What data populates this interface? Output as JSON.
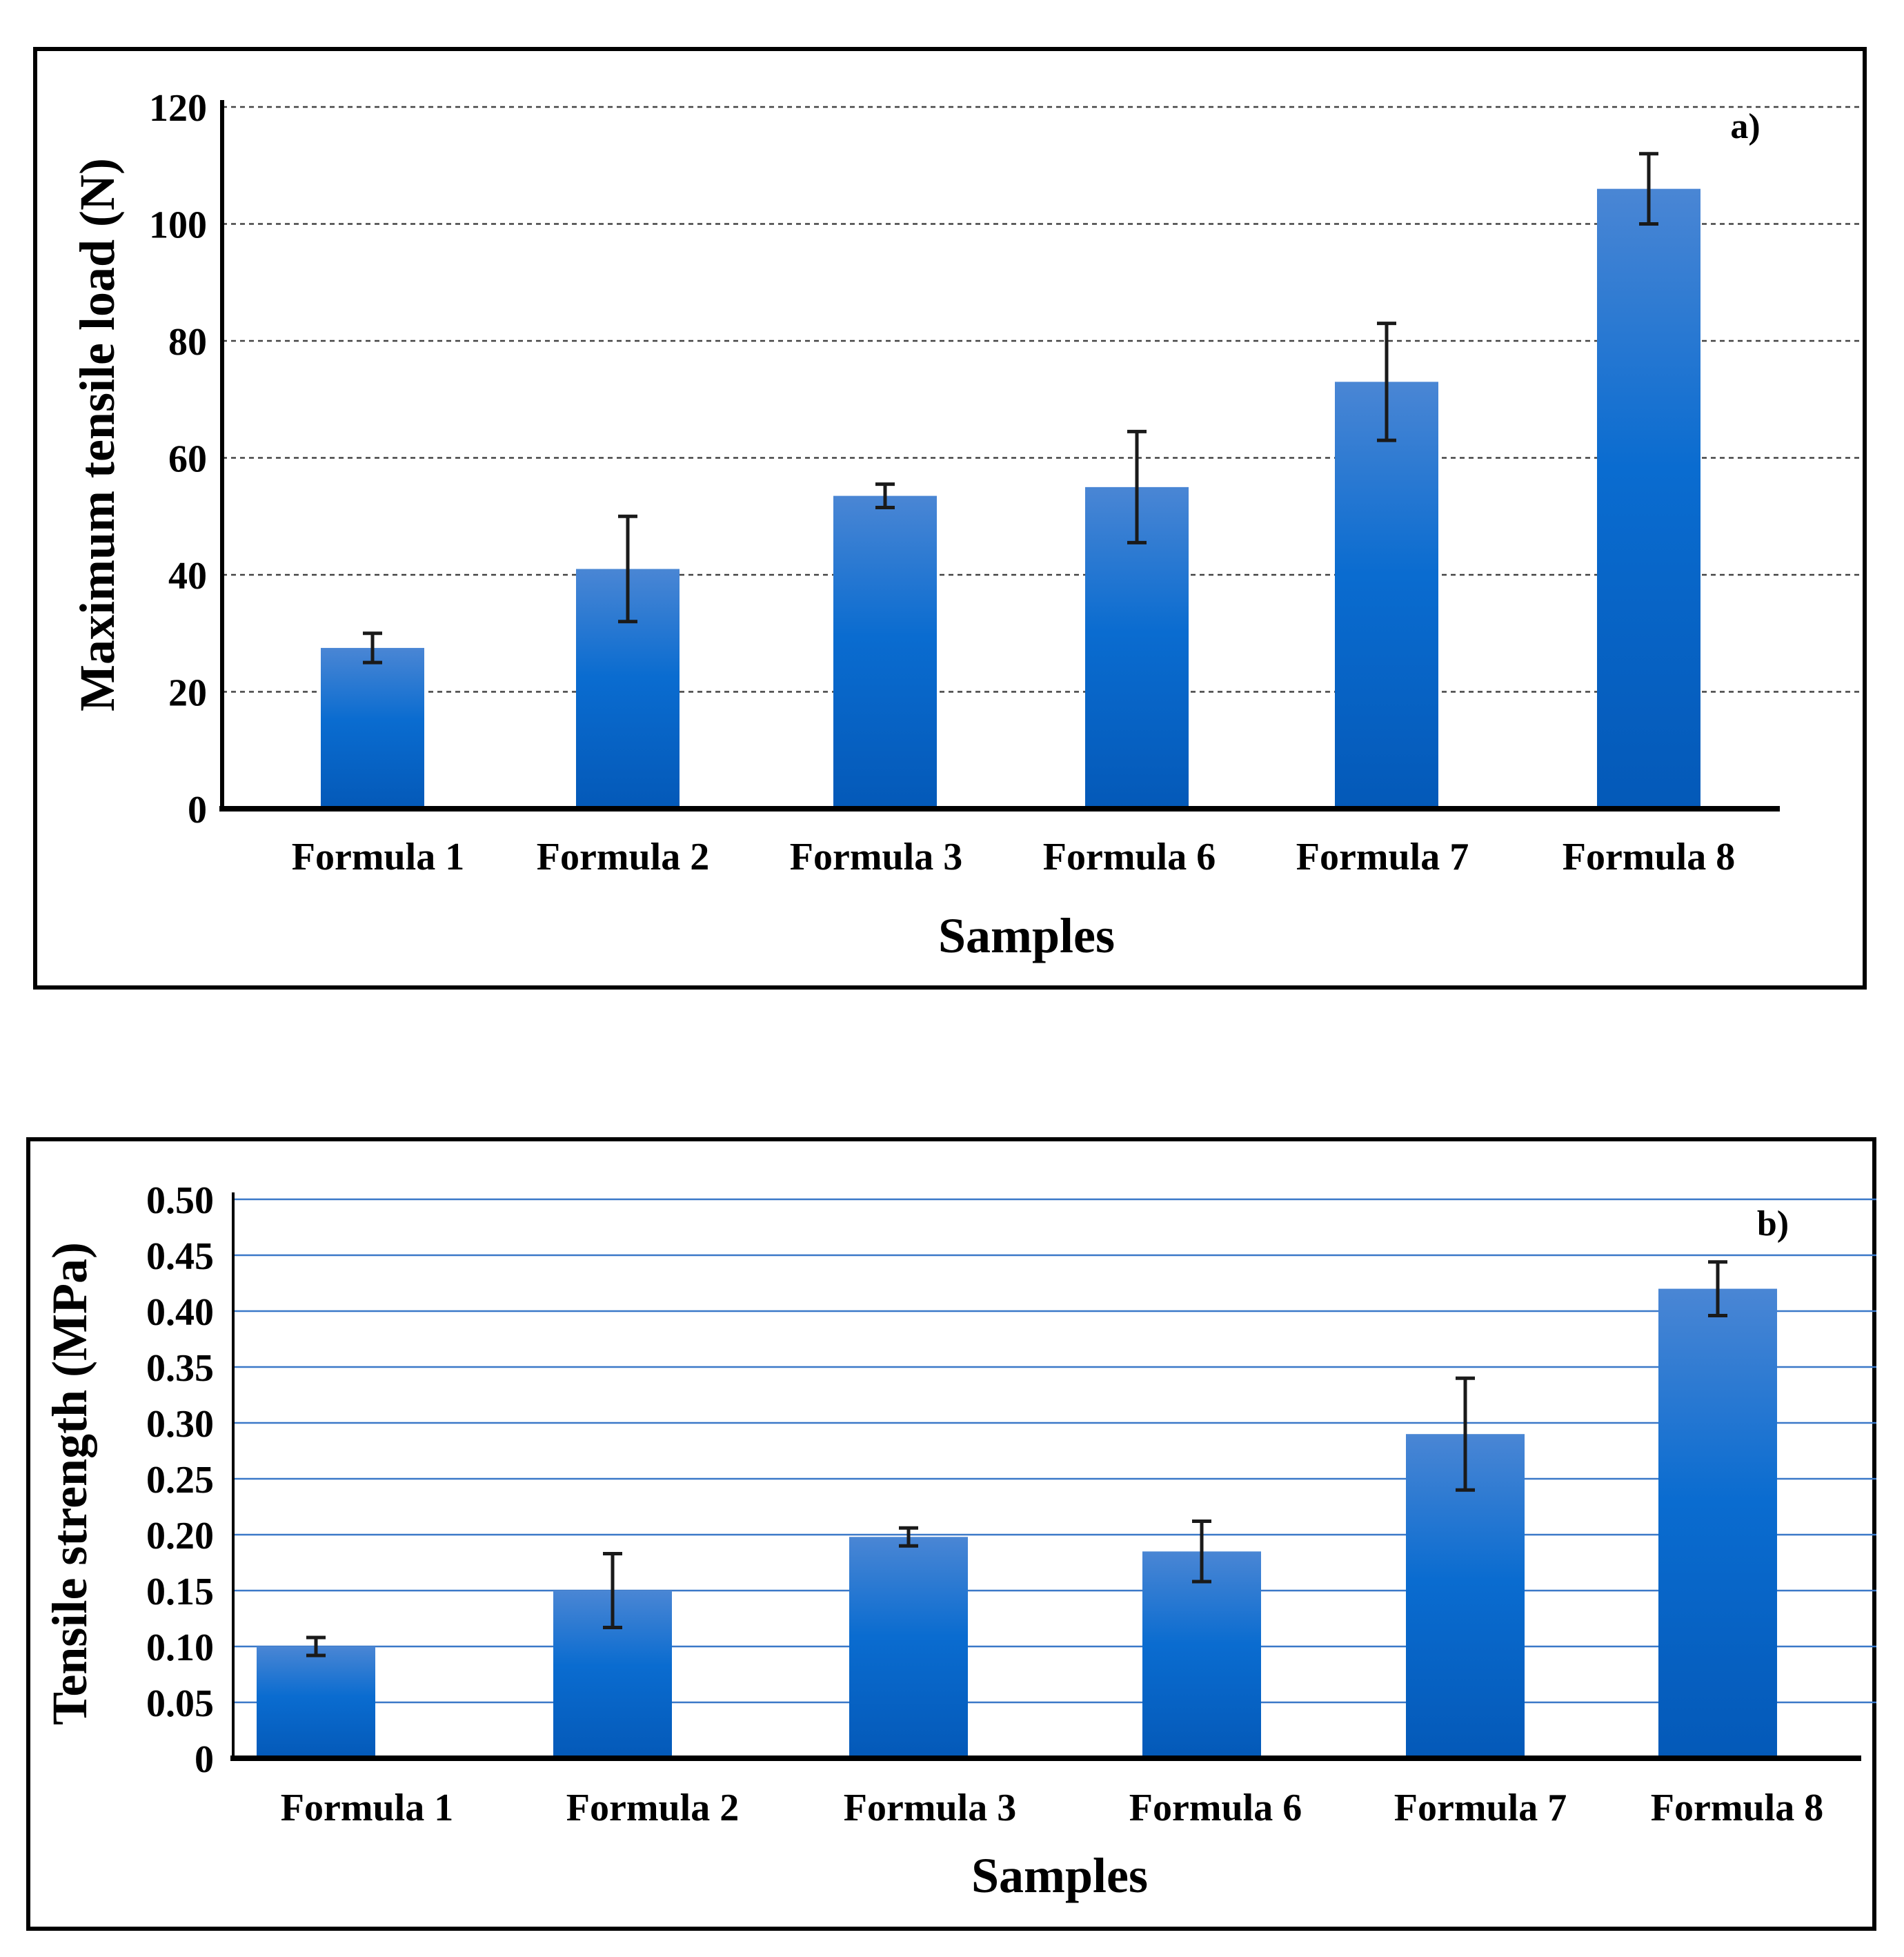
{
  "chart_data": [
    {
      "type": "bar",
      "panel_label": "a)",
      "title": "",
      "xlabel": "Samples",
      "ylabel": "Maximum tensile load (N)",
      "categories": [
        "Formula 1",
        "Formula 2",
        "Formula 3",
        "Formula 6",
        "Formula 7",
        "Formula 8"
      ],
      "values": [
        27.5,
        41,
        53.5,
        55,
        73,
        106
      ],
      "errors": [
        2.5,
        9,
        2,
        9.5,
        10,
        6
      ],
      "ylim": [
        0,
        120
      ],
      "yticks": [
        0,
        20,
        40,
        60,
        80,
        100,
        120
      ],
      "ytick_labels": [
        "0",
        "20",
        "40",
        "60",
        "80",
        "100",
        "120"
      ],
      "grid": true,
      "grid_style": "dashed",
      "bar_color_top": "#4a86d4",
      "bar_color_mid": "#0a6cd0",
      "bar_color_bottom": "#0459b8"
    },
    {
      "type": "bar",
      "panel_label": "b)",
      "title": "",
      "xlabel": "Samples",
      "ylabel": "Tensile strength (MPa)",
      "categories": [
        "Formula 1",
        "Formula 2",
        "Formula 3",
        "Formula 6",
        "Formula 7",
        "Formula 8"
      ],
      "values": [
        0.1,
        0.15,
        0.198,
        0.185,
        0.29,
        0.42
      ],
      "errors": [
        0.008,
        0.033,
        0.008,
        0.027,
        0.05,
        0.024
      ],
      "ylim": [
        0,
        0.5
      ],
      "yticks": [
        0,
        0.05,
        0.1,
        0.15,
        0.2,
        0.25,
        0.3,
        0.35,
        0.4,
        0.45,
        0.5
      ],
      "ytick_labels": [
        "0",
        "0.05",
        "0.10",
        "0.15",
        "0.20",
        "0.25",
        "0.30",
        "0.35",
        "0.40",
        "0.45",
        "0.50"
      ],
      "grid": true,
      "grid_style": "solid",
      "grid_color": "#3a78c8",
      "bar_color_top": "#4a86d4",
      "bar_color_mid": "#0a6cd0",
      "bar_color_bottom": "#0459b8"
    }
  ]
}
